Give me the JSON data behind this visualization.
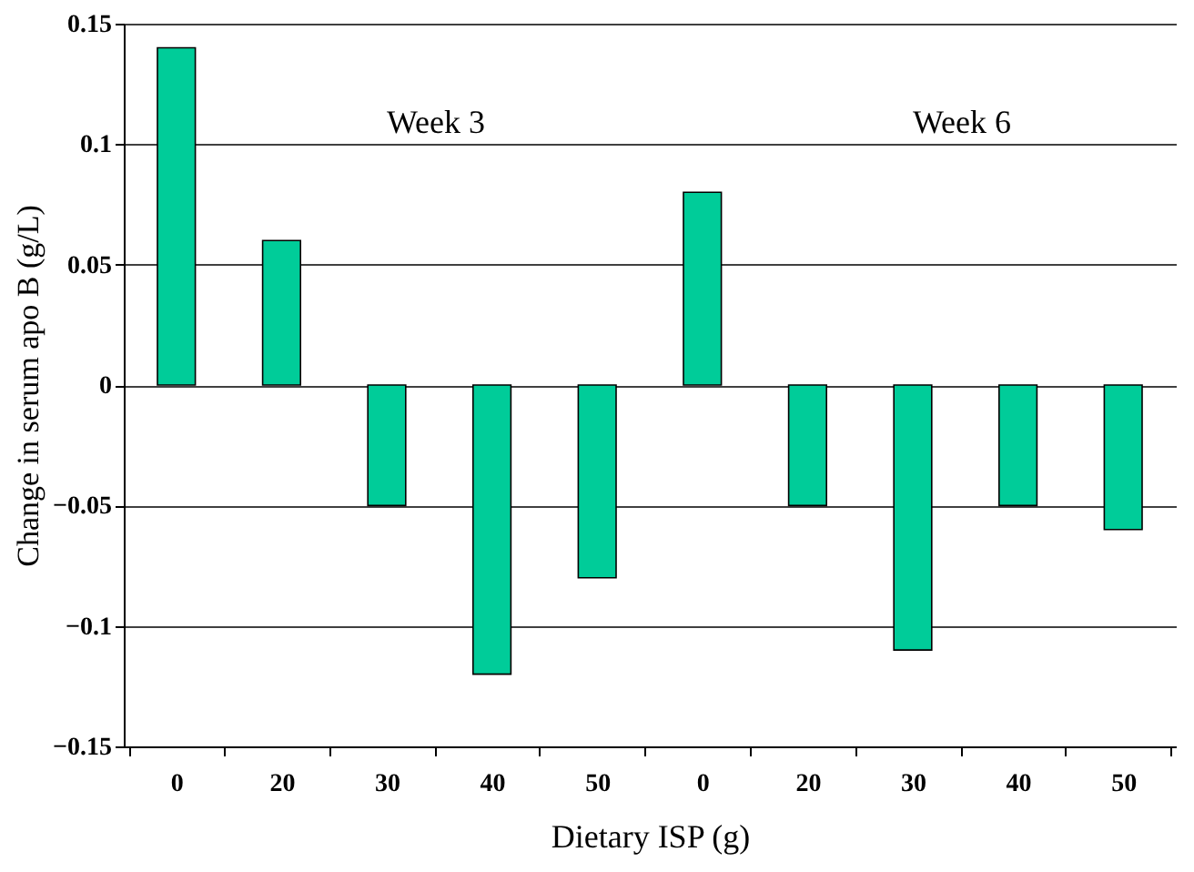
{
  "chart_data": {
    "type": "bar",
    "xlabel": "Dietary ISP (g)",
    "ylabel": "Change in serum apo B (g/L)",
    "categories": [
      "0",
      "20",
      "30",
      "40",
      "50",
      "0",
      "20",
      "30",
      "40",
      "50"
    ],
    "values": [
      0.14,
      0.06,
      -0.05,
      -0.12,
      -0.08,
      0.08,
      -0.05,
      -0.11,
      -0.05,
      -0.06
    ],
    "color": "#00cc99",
    "annotations": [
      "Week 3",
      "Week 6"
    ],
    "ylim": [
      -0.15,
      0.15
    ],
    "yticks": [
      -0.15,
      -0.1,
      -0.05,
      0,
      0.05,
      0.1,
      0.15
    ],
    "grid": "y"
  }
}
